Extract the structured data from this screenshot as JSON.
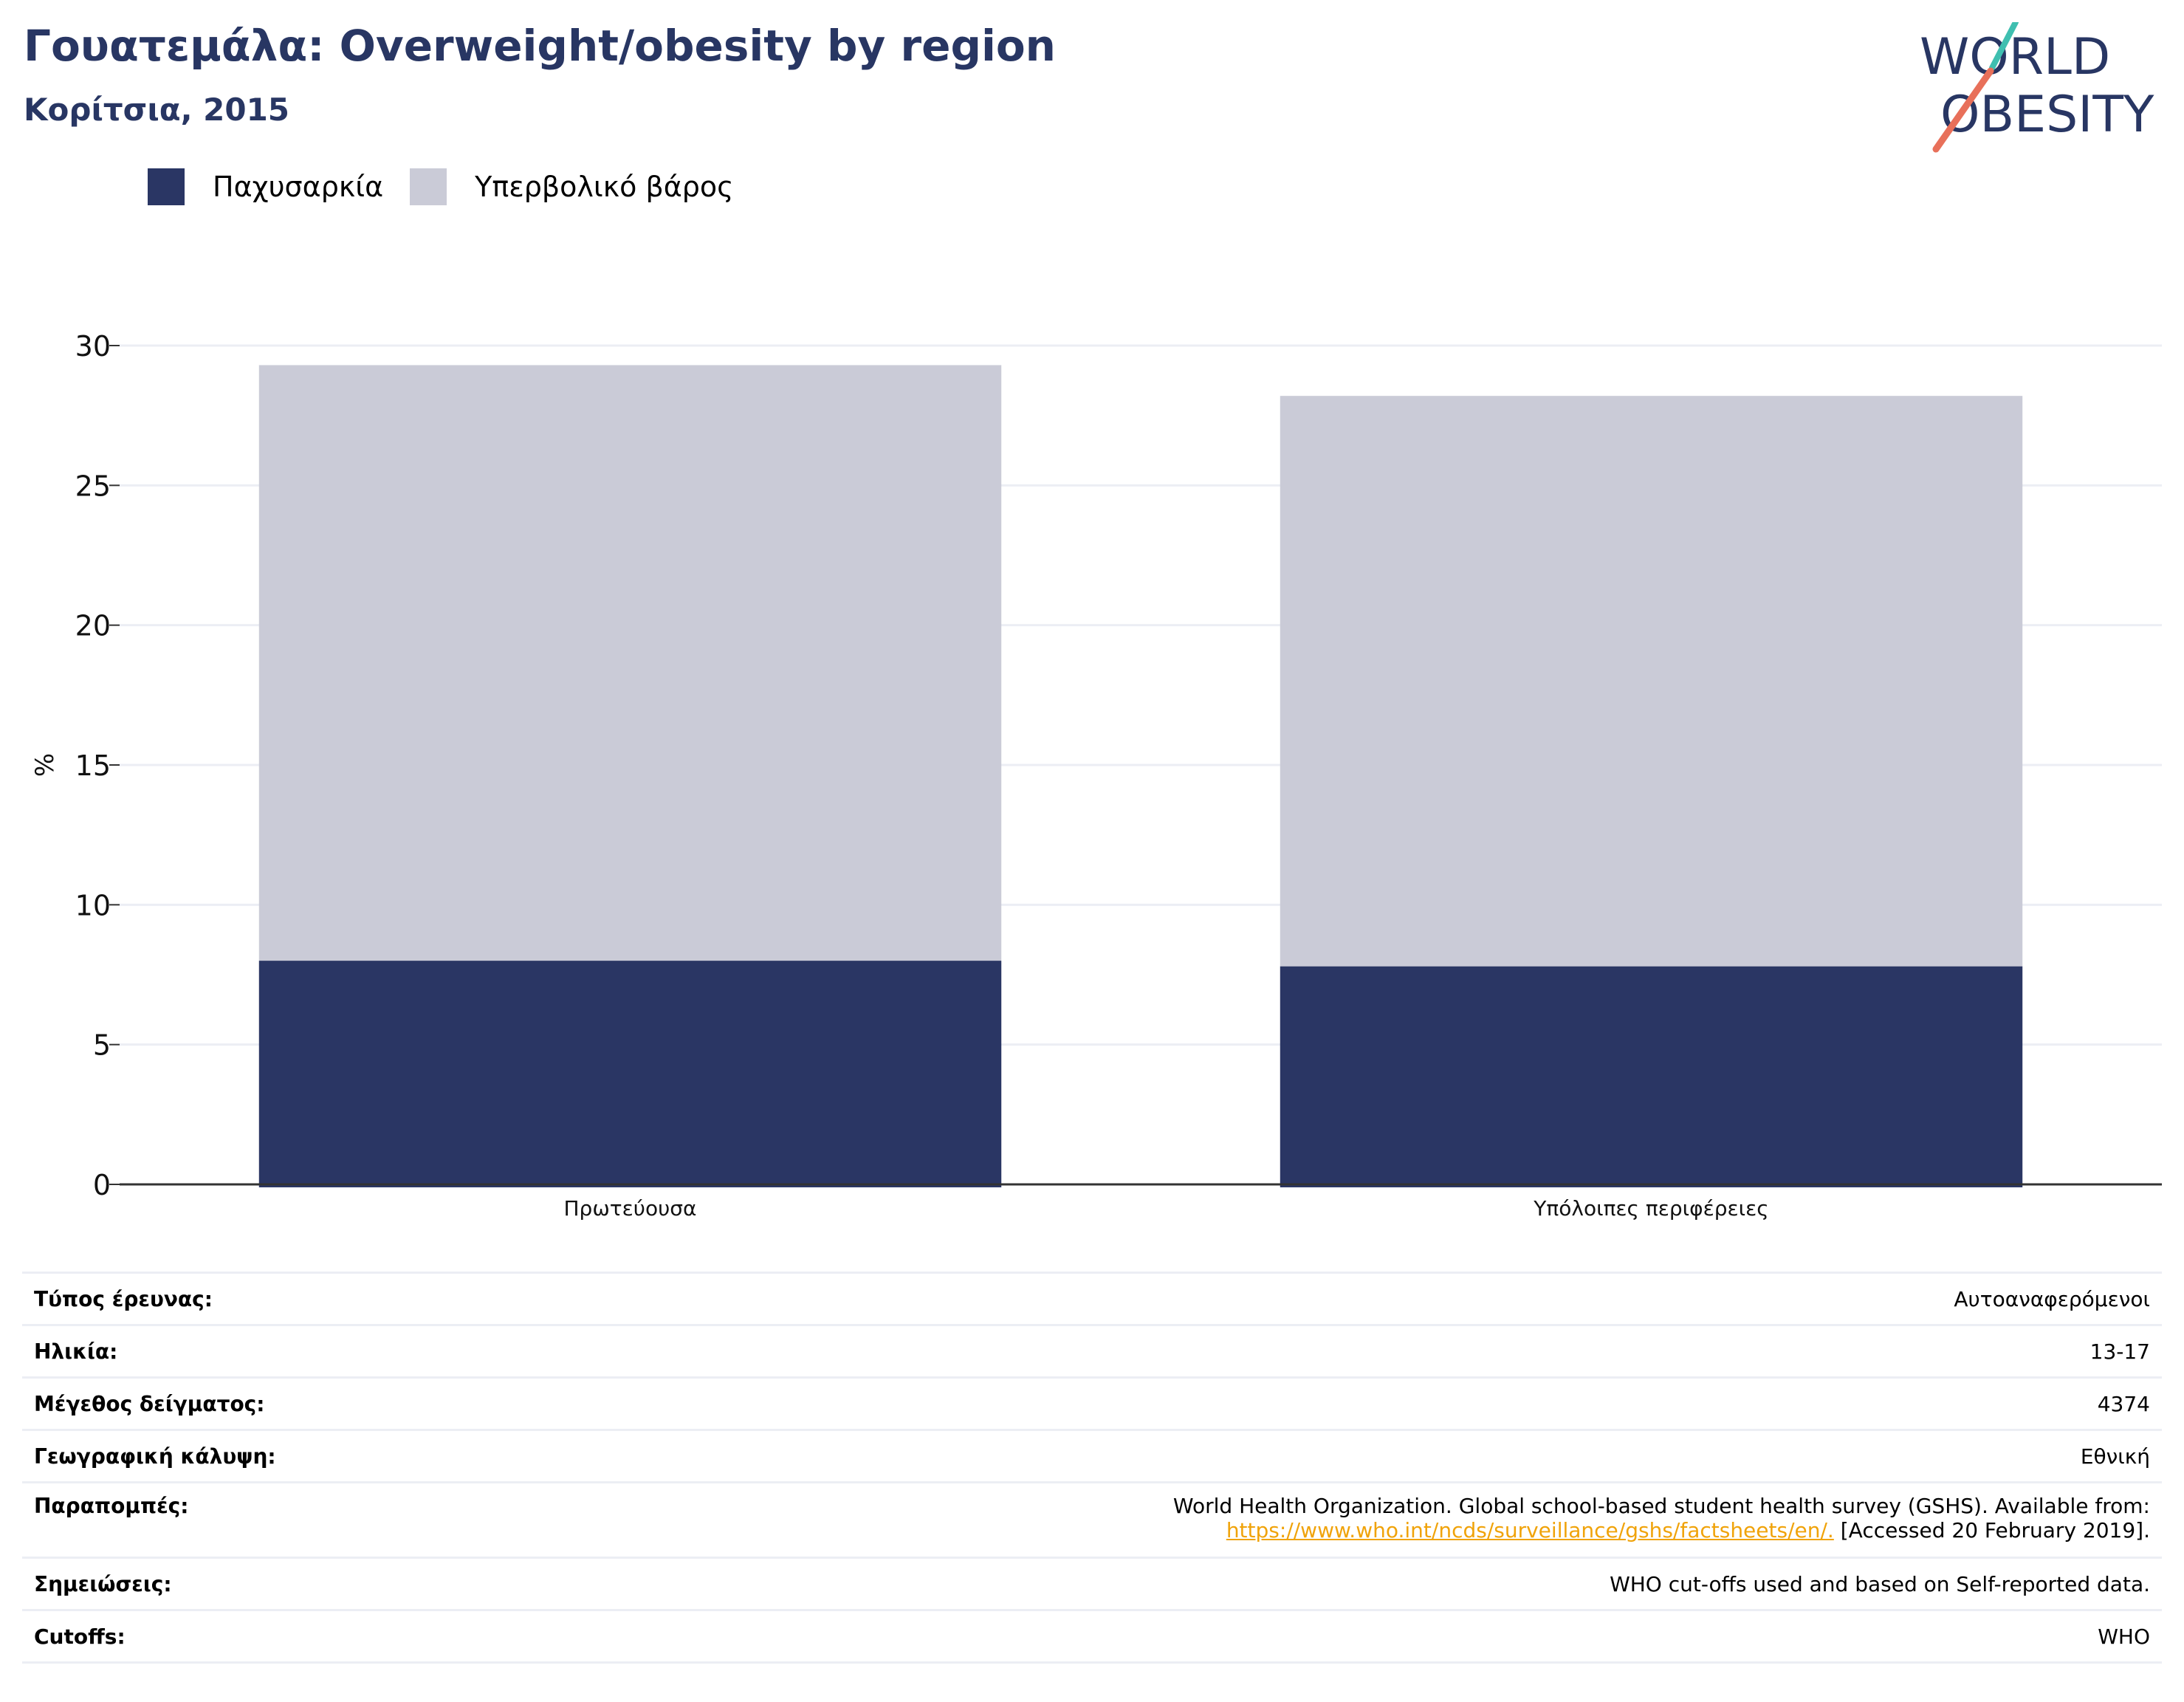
{
  "header": {
    "title": "Γουατεμάλα: Overweight/obesity by region",
    "subtitle": "Κορίτσια, 2015",
    "logo_line1": "WORLD",
    "logo_line2": "OBESITY"
  },
  "colors": {
    "obesity": "#2a3664",
    "overweight": "#cacbd7",
    "title": "#283663",
    "grid": "#eceef4",
    "link": "#f0a30a"
  },
  "chart_data": {
    "type": "bar",
    "stacked": true,
    "categories": [
      "Πρωτεύουσα",
      "Υπόλοιπες περιφέρειες"
    ],
    "series": [
      {
        "name": "Παχυσαρκία",
        "values": [
          8.0,
          7.8
        ]
      },
      {
        "name": "Υπερβολικό βάρος",
        "values": [
          21.3,
          20.4
        ]
      }
    ],
    "ylabel": "%",
    "ylim": [
      0,
      30
    ],
    "yticks": [
      0,
      5,
      10,
      15,
      20,
      25,
      30
    ],
    "grid": true,
    "legend_position": "top-left"
  },
  "info": {
    "survey_type_label": "Τύπος έρευνας:",
    "survey_type_value": "Αυτοαναφερόμενοι",
    "age_label": "Ηλικία:",
    "age_value": "13-17",
    "sample_label": "Μέγεθος δείγματος:",
    "sample_value": "4374",
    "coverage_label": "Γεωγραφική κάλυψη:",
    "coverage_value": "Εθνική",
    "references_label": "Παραπομπές:",
    "references_text1": "World Health Organization. Global school-based student health survey (GSHS). Available from:",
    "references_link": "https://www.who.int/ncds/surveillance/gshs/factsheets/en/.",
    "references_text2": " [Accessed 20 February 2019].",
    "notes_label": "Σημειώσεις:",
    "notes_value": "WHO cut-offs used and based on Self-reported data.",
    "cutoffs_label": "Cutoffs:",
    "cutoffs_value": "WHO"
  }
}
